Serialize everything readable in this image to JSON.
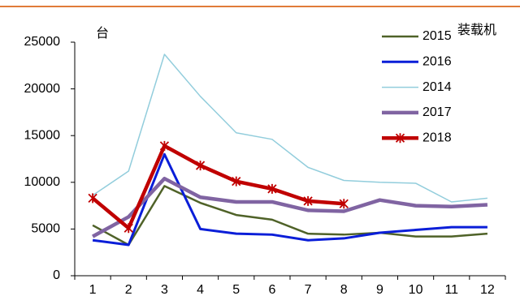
{
  "chart_data": {
    "type": "line",
    "y_unit": "台",
    "annotation": "装载机",
    "categories": [
      "1",
      "2",
      "3",
      "4",
      "5",
      "6",
      "7",
      "8",
      "9",
      "10",
      "11",
      "12"
    ],
    "ylim": [
      0,
      25000
    ],
    "yticks": [
      0,
      5000,
      10000,
      15000,
      20000,
      25000
    ],
    "series": [
      {
        "name": "2015",
        "color": "#4f6228",
        "values": [
          5400,
          3300,
          9600,
          7800,
          6500,
          6000,
          4500,
          4400,
          4600,
          4200,
          4200,
          4500
        ]
      },
      {
        "name": "2016",
        "color": "#0a1ed8",
        "values": [
          3800,
          3300,
          13000,
          5000,
          4500,
          4400,
          3800,
          4000,
          4600,
          4900,
          5200,
          5200
        ]
      },
      {
        "name": "2014",
        "color": "#92cddc",
        "values": [
          8600,
          11200,
          23700,
          19200,
          15300,
          14600,
          11600,
          10200,
          10000,
          9900,
          7900,
          8300
        ]
      },
      {
        "name": "2017",
        "color": "#8064a2",
        "values": [
          4200,
          6300,
          10400,
          8400,
          7900,
          7900,
          7000,
          6900,
          8100,
          7500,
          7400,
          7600
        ]
      },
      {
        "name": "2018",
        "color": "#c00000",
        "marker": "x",
        "values": [
          8300,
          5100,
          13900,
          11800,
          10100,
          9300,
          8000,
          7700,
          null,
          null,
          null,
          null
        ]
      }
    ]
  }
}
